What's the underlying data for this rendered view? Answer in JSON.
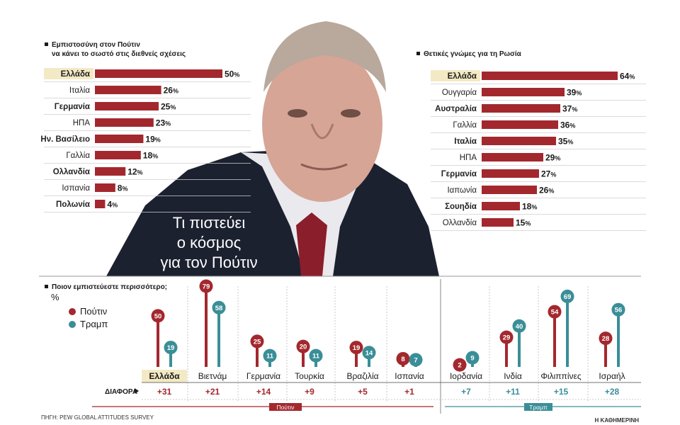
{
  "colors": {
    "putin": "#a3282e",
    "trump": "#3a8e97",
    "highlight": "#f3e9c4"
  },
  "photo": {
    "title_lines": [
      "Τι πιστεύει",
      "ο κόσμος",
      "για τον Πούτιν"
    ]
  },
  "chart_data": [
    {
      "type": "bar",
      "title_lines": [
        "Εμπιστοσύνη στον Πούτιν",
        "να κάνει το σωστό στις διεθνείς σχέσεις"
      ],
      "categories": [
        "Ελλάδα",
        "Ιταλία",
        "Γερμανία",
        "ΗΠΑ",
        "Ην. Βασίλειο",
        "Γαλλία",
        "Ολλανδία",
        "Ισπανία",
        "Πολωνία"
      ],
      "values": [
        50,
        26,
        25,
        23,
        19,
        18,
        12,
        8,
        4
      ],
      "labels": [
        "50%",
        "26%",
        "25%",
        "23%",
        "19%",
        "18%",
        "12%",
        "8%",
        "4%"
      ],
      "bold_rows": [
        true,
        false,
        true,
        false,
        true,
        false,
        true,
        false,
        true
      ],
      "highlight_index": 0,
      "xlim": [
        0,
        50
      ]
    },
    {
      "type": "bar",
      "title_lines": [
        "Θετικές γνώμες για τη Ρωσία"
      ],
      "categories": [
        "Ελλάδα",
        "Ουγγαρία",
        "Αυστραλία",
        "Γαλλία",
        "Ιταλία",
        "ΗΠΑ",
        "Γερμανία",
        "Ιαπωνία",
        "Σουηδία",
        "Ολλανδία"
      ],
      "values": [
        64,
        39,
        37,
        36,
        35,
        29,
        27,
        26,
        18,
        15
      ],
      "labels": [
        "64%",
        "39%",
        "37%",
        "36%",
        "35%",
        "29%",
        "27%",
        "26%",
        "18%",
        "15%"
      ],
      "bold_rows": [
        true,
        false,
        true,
        false,
        true,
        false,
        true,
        false,
        true,
        false
      ],
      "highlight_index": 0,
      "xlim": [
        0,
        64
      ]
    },
    {
      "type": "bar",
      "title_lines": [
        "Ποιον εμπιστεύεστε περισσότερο;"
      ],
      "unit": "%",
      "legend": [
        "Πούτιν",
        "Τραμπ"
      ],
      "categories": [
        "Ελλάδα",
        "Βιετνάμ",
        "Γερμανία",
        "Τουρκία",
        "Βραζιλία",
        "Ισπανία",
        "Ιορδανία",
        "Ινδία",
        "Φιλιππίνες",
        "Ισραήλ"
      ],
      "series": [
        {
          "name": "Πούτιν",
          "values": [
            50,
            79,
            25,
            20,
            19,
            8,
            2,
            29,
            54,
            28
          ]
        },
        {
          "name": "Τραμπ",
          "values": [
            19,
            58,
            11,
            11,
            14,
            7,
            9,
            40,
            69,
            56
          ]
        }
      ],
      "value_labels": {
        "putin": [
          "50",
          "79",
          "25",
          "20",
          "19",
          "8",
          "2",
          "29",
          "54",
          "28"
        ],
        "trump": [
          "19",
          "58",
          "11",
          "11",
          "14",
          "7",
          "9",
          "40",
          "69",
          "56"
        ]
      },
      "difference_label": "ΔΙΑΦΟΡΑ",
      "differences": [
        "+31",
        "+21",
        "+14",
        "+9",
        "+5",
        "+1",
        "+7",
        "+11",
        "+15",
        "+28"
      ],
      "groups": [
        "Πούτιν",
        "Τραμπ"
      ],
      "group_split_index": 6,
      "highlight_index": 0,
      "ylim": [
        0,
        79
      ]
    }
  ],
  "footer": {
    "source": "ΠΗΓΗ: PEW GLOBAL ATTITUDES SURVEY",
    "brand": "Η ΚΑΘΗΜΕΡΙΝΗ"
  }
}
